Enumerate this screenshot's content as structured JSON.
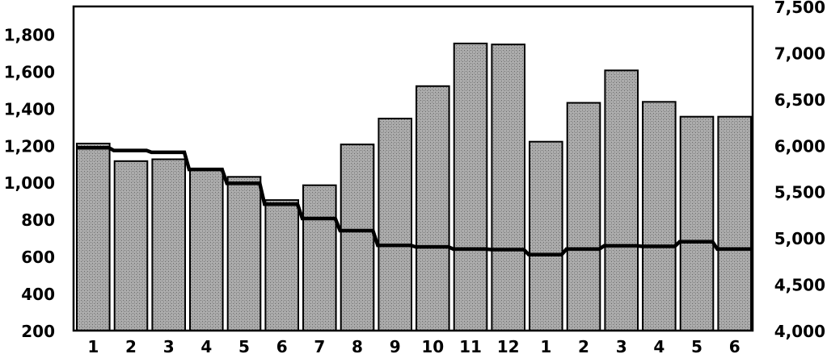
{
  "chart_data": {
    "type": "bar",
    "categories": [
      "1",
      "2",
      "3",
      "4",
      "5",
      "6",
      "7",
      "8",
      "9",
      "10",
      "11",
      "12",
      "1",
      "2",
      "3",
      "4",
      "5",
      "6"
    ],
    "series": [
      {
        "type": "bar",
        "axis": "left",
        "values": [
          1210,
          1115,
          1125,
          1075,
          1030,
          905,
          985,
          1205,
          1345,
          1520,
          1750,
          1745,
          1220,
          1430,
          1605,
          1435,
          1355,
          1355
        ]
      },
      {
        "type": "step-line",
        "axis": "right",
        "values": [
          5975,
          5945,
          5925,
          5740,
          5590,
          5365,
          5210,
          5080,
          4920,
          4905,
          4880,
          4875,
          4820,
          4880,
          4915,
          4910,
          4960,
          4880
        ]
      }
    ],
    "y_left": {
      "ylim": [
        200,
        1950
      ],
      "ticks": [
        200,
        400,
        600,
        800,
        1000,
        1200,
        1400,
        1600,
        1800
      ],
      "tick_labels": [
        "200",
        "400",
        "600",
        "800",
        "1,000",
        "1,200",
        "1,400",
        "1,600",
        "1,800"
      ]
    },
    "y_right": {
      "ylim": [
        4000,
        7500
      ],
      "ticks": [
        4000,
        4500,
        5000,
        5500,
        6000,
        6500,
        7000,
        7500
      ],
      "tick_labels": [
        "4,000",
        "4,500",
        "5,000",
        "5,500",
        "6,000",
        "6,500",
        "7,000",
        "7,500"
      ]
    },
    "grid": false,
    "colors": {
      "bar_fill": "#a9a9a9",
      "bar_pattern": "#6a6a6a",
      "line": "#000000",
      "frame": "#000000"
    }
  }
}
